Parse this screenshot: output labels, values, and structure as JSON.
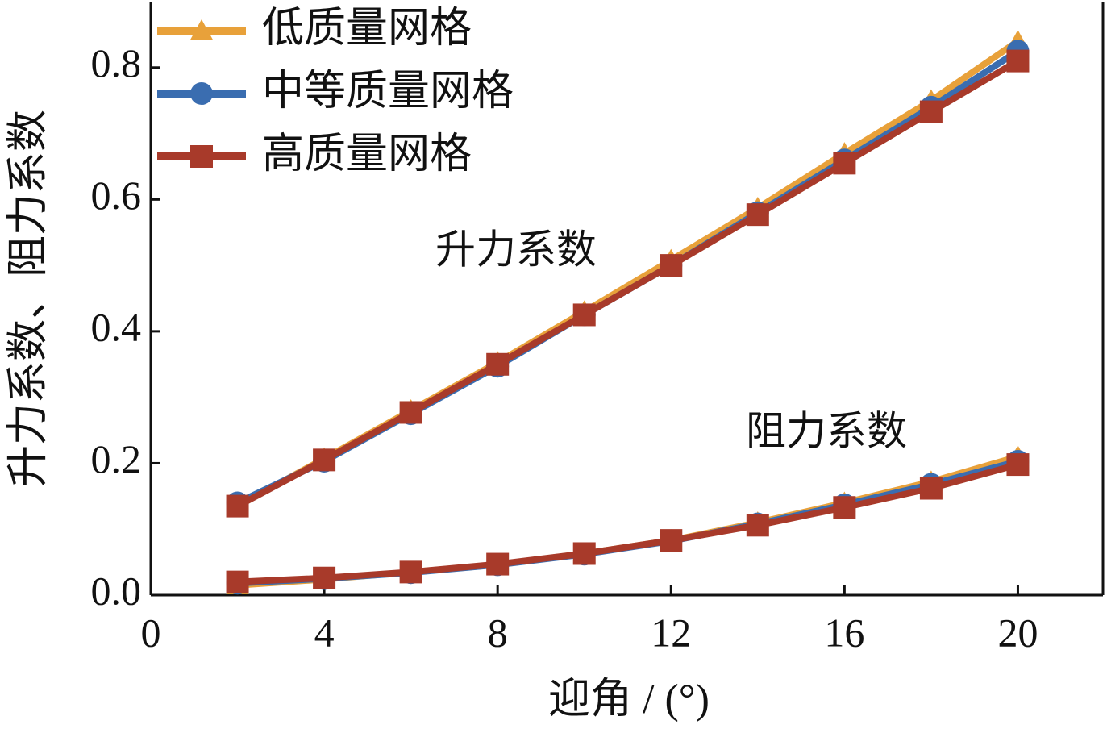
{
  "chart_data": {
    "type": "line",
    "x_label": "迎角 / (°)",
    "y_label": "升力系数、阻力系数",
    "annotations": [
      "升力系数",
      "阻力系数"
    ],
    "x": [
      2,
      4,
      6,
      8,
      10,
      12,
      14,
      16,
      18,
      20
    ],
    "series": [
      {
        "name": "低质量网格",
        "color": "#e8a13a",
        "marker": "triangle",
        "lift_values": [
          0.135,
          0.207,
          0.28,
          0.353,
          0.43,
          0.508,
          0.587,
          0.67,
          0.75,
          0.84
        ],
        "drag_values": [
          0.015,
          0.024,
          0.035,
          0.046,
          0.063,
          0.083,
          0.11,
          0.14,
          0.172,
          0.21
        ]
      },
      {
        "name": "中等质量网格",
        "color": "#3a6db0",
        "marker": "circle",
        "lift_values": [
          0.14,
          0.203,
          0.275,
          0.347,
          0.425,
          0.5,
          0.58,
          0.66,
          0.74,
          0.825
        ],
        "drag_values": [
          0.018,
          0.025,
          0.034,
          0.046,
          0.062,
          0.082,
          0.108,
          0.137,
          0.168,
          0.203
        ]
      },
      {
        "name": "高质量网格",
        "color": "#a83a2a",
        "marker": "square",
        "lift_values": [
          0.135,
          0.205,
          0.277,
          0.35,
          0.425,
          0.5,
          0.577,
          0.655,
          0.733,
          0.81
        ],
        "drag_values": [
          0.02,
          0.026,
          0.035,
          0.047,
          0.063,
          0.083,
          0.106,
          0.133,
          0.162,
          0.198
        ]
      }
    ],
    "xlim": [
      0,
      22
    ],
    "xticks": [
      0,
      4,
      8,
      12,
      16,
      20
    ],
    "ylim": [
      0,
      0.9
    ],
    "yticks": [
      {
        "value": 0,
        "label": "0.0"
      },
      0.2,
      0.4,
      0.6,
      0.8
    ],
    "legend": "upper-left"
  }
}
